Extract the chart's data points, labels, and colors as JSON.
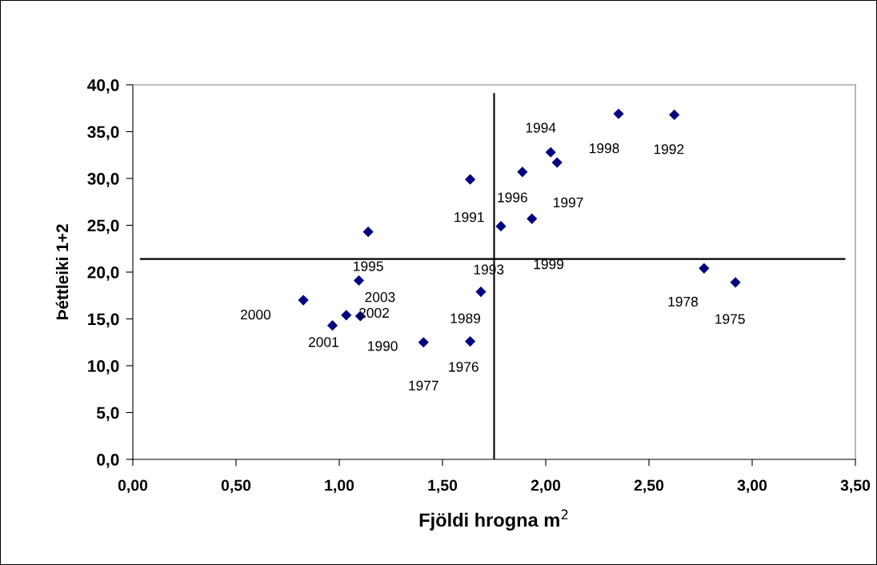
{
  "chart_data": {
    "type": "scatter",
    "xlabel": "Fjöldi hrogna m$^{2}$",
    "ylabel": "Þéttleiki 1+2",
    "x": [
      0.826,
      0.967,
      1.034,
      1.102,
      1.095,
      1.14,
      1.408,
      1.634,
      1.634,
      1.686,
      1.783,
      1.887,
      1.933,
      2.024,
      2.055,
      2.353,
      2.623,
      2.767,
      2.919
    ],
    "series": [
      {
        "color": "#000080",
        "values": [
          17.0,
          14.3,
          15.4,
          15.3,
          19.1,
          24.3,
          12.5,
          29.9,
          12.6,
          17.9,
          24.9,
          30.7,
          25.7,
          32.8,
          31.7,
          36.9,
          36.8,
          20.4,
          18.9
        ]
      }
    ],
    "marker": "diamond",
    "annotations": [
      {
        "text": "2000",
        "x": 0.826,
        "y": 17.0
      },
      {
        "text": "2001",
        "x": 0.967,
        "y": 14.3
      },
      {
        "text": "2002",
        "x": 1.034,
        "y": 15.4
      },
      {
        "text": "1990",
        "x": 1.102,
        "y": 15.3
      },
      {
        "text": "2003",
        "x": 1.095,
        "y": 19.1
      },
      {
        "text": "1995",
        "x": 1.14,
        "y": 24.3
      },
      {
        "text": "1977",
        "x": 1.408,
        "y": 12.5
      },
      {
        "text": "1991",
        "x": 1.634,
        "y": 29.9
      },
      {
        "text": "1976",
        "x": 1.634,
        "y": 12.6
      },
      {
        "text": "1989",
        "x": 1.686,
        "y": 17.9
      },
      {
        "text": "1993",
        "x": 1.783,
        "y": 24.9
      },
      {
        "text": "1996",
        "x": 1.887,
        "y": 30.7
      },
      {
        "text": "1999",
        "x": 1.933,
        "y": 25.7
      },
      {
        "text": "1994",
        "x": 2.024,
        "y": 32.8
      },
      {
        "text": "1997",
        "x": 2.055,
        "y": 31.7
      },
      {
        "text": "1998",
        "x": 2.353,
        "y": 36.9
      },
      {
        "text": "1992",
        "x": 2.623,
        "y": 36.8
      },
      {
        "text": "1978",
        "x": 2.767,
        "y": 20.4
      },
      {
        "text": "1975",
        "x": 2.919,
        "y": 18.9
      }
    ],
    "ref_lines": [
      {
        "axis": "x",
        "value": 1.75,
        "color": "#000000"
      },
      {
        "axis": "y",
        "value": 21.4,
        "color": "#000000"
      }
    ],
    "xlim": [
      0,
      3.5
    ],
    "xticks": [
      {
        "value": 0,
        "label": "0,00"
      },
      {
        "value": 0.5,
        "label": "0,50"
      },
      {
        "value": 1,
        "label": "1,00"
      },
      {
        "value": 1.5,
        "label": "1,50"
      },
      {
        "value": 2,
        "label": "2,00"
      },
      {
        "value": 2.5,
        "label": "2,50"
      },
      {
        "value": 3,
        "label": "3,00"
      },
      {
        "value": 3.5,
        "label": "3,50"
      }
    ],
    "ylim": [
      0,
      40
    ],
    "yticks": [
      {
        "value": 0,
        "label": "0,0"
      },
      {
        "value": 5,
        "label": "5,0"
      },
      {
        "value": 10,
        "label": "10,0"
      },
      {
        "value": 15,
        "label": "15,0"
      },
      {
        "value": 20,
        "label": "20,0"
      },
      {
        "value": 25,
        "label": "25,0"
      },
      {
        "value": 30,
        "label": "30,0"
      },
      {
        "value": 35,
        "label": "35,0"
      },
      {
        "value": 40,
        "label": "40,0"
      }
    ],
    "grid": false
  }
}
